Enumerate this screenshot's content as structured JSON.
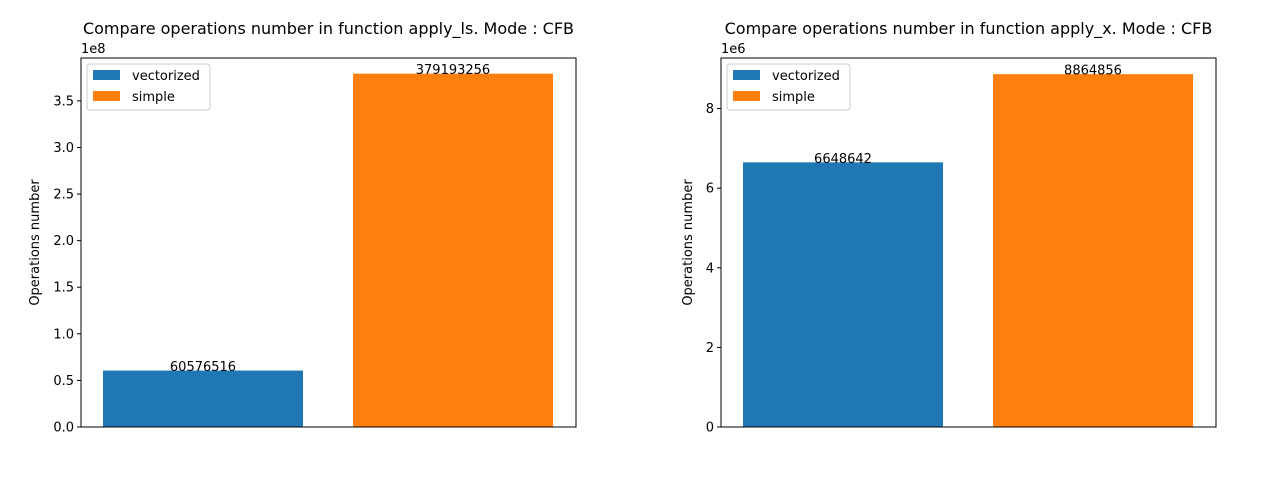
{
  "chart_data": [
    {
      "type": "bar",
      "title": "Compare operations number in function apply_ls. Mode : CFB",
      "xlabel": "",
      "ylabel": "Operations number",
      "ylim": [
        0,
        396000000
      ],
      "ymultiplier": "1e8",
      "yticks": [
        {
          "value": 0,
          "label": "0.0"
        },
        {
          "value": 50000000,
          "label": "0.5"
        },
        {
          "value": 100000000,
          "label": "1.0"
        },
        {
          "value": 150000000,
          "label": "1.5"
        },
        {
          "value": 200000000,
          "label": "2.0"
        },
        {
          "value": 250000000,
          "label": "2.5"
        },
        {
          "value": 300000000,
          "label": "3.0"
        },
        {
          "value": 350000000,
          "label": "3.5"
        }
      ],
      "series": [
        {
          "name": "vectorized",
          "value": 60576516,
          "label": "60576516",
          "color": "#1f77b4"
        },
        {
          "name": "simple",
          "value": 379193256,
          "label": "379193256",
          "color": "#ff7f0e"
        }
      ],
      "legend": "upper-left",
      "grid": false
    },
    {
      "type": "bar",
      "title": "Compare operations number in function apply_x. Mode : CFB",
      "xlabel": "",
      "ylabel": "Operations number",
      "ylim": [
        0,
        9270000
      ],
      "ymultiplier": "1e6",
      "yticks": [
        {
          "value": 0,
          "label": "0"
        },
        {
          "value": 2000000,
          "label": "2"
        },
        {
          "value": 4000000,
          "label": "4"
        },
        {
          "value": 6000000,
          "label": "6"
        },
        {
          "value": 8000000,
          "label": "8"
        }
      ],
      "series": [
        {
          "name": "vectorized",
          "value": 6648642,
          "label": "6648642",
          "color": "#1f77b4"
        },
        {
          "name": "simple",
          "value": 8864856,
          "label": "8864856",
          "color": "#ff7f0e"
        }
      ],
      "legend": "upper-left",
      "grid": false
    }
  ]
}
